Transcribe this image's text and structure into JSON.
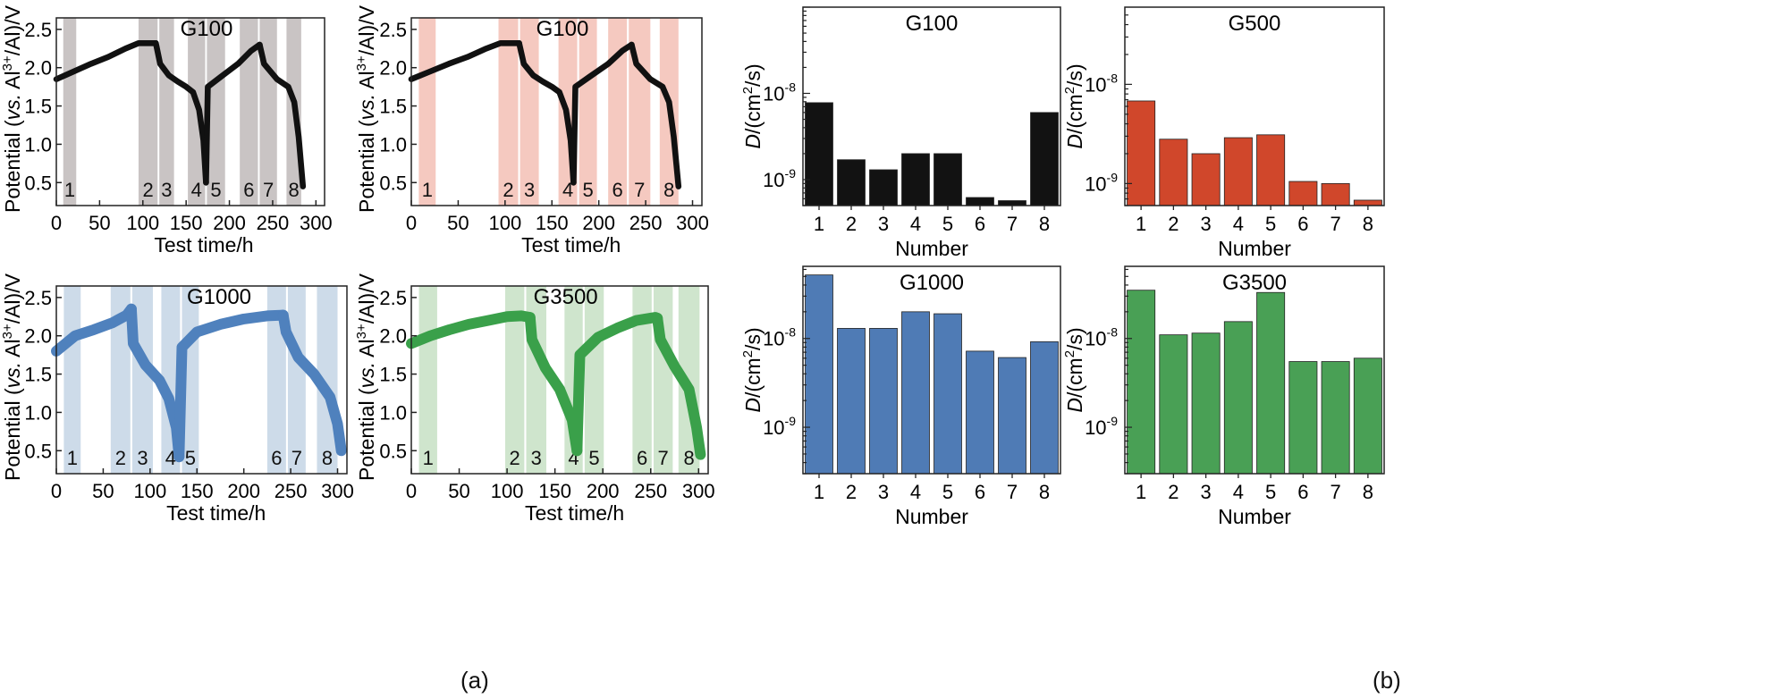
{
  "captions": {
    "a": "(a)",
    "b": "(b)"
  },
  "chart_data": [
    {
      "id": "pot-g100-gray",
      "type": "line",
      "title": "G100",
      "xlabel": "Test time/h",
      "ylabel_parts": [
        "Potential (",
        "vs.",
        " Al",
        "3+",
        "/Al)/V"
      ],
      "xlim": [
        0,
        310
      ],
      "ylim": [
        0.2,
        2.65
      ],
      "xticks": [
        0,
        50,
        100,
        150,
        200,
        250,
        300
      ],
      "yticks": [
        0.5,
        1.0,
        1.5,
        2.0,
        2.5
      ],
      "ytick_labels": [
        "0.5",
        "1.0",
        "1.5",
        "2.0",
        "2.5"
      ],
      "band_color": "#c9c4c4",
      "line_color": "#111111",
      "line_width": 2.2,
      "bands": [
        {
          "x0": 8,
          "x1": 23,
          "label": "1"
        },
        {
          "x0": 95,
          "x1": 117,
          "label": "2"
        },
        {
          "x0": 119,
          "x1": 136,
          "label": "3"
        },
        {
          "x0": 152,
          "x1": 172,
          "label": "4"
        },
        {
          "x0": 174,
          "x1": 195,
          "label": "5"
        },
        {
          "x0": 212,
          "x1": 233,
          "label": "6"
        },
        {
          "x0": 235,
          "x1": 255,
          "label": "7"
        },
        {
          "x0": 266,
          "x1": 283,
          "label": "8"
        }
      ],
      "series": [
        {
          "x": [
            0,
            20,
            40,
            60,
            80,
            95,
            115
          ],
          "y": [
            1.85,
            1.95,
            2.05,
            2.14,
            2.25,
            2.32,
            2.32
          ]
        },
        {
          "x": [
            115,
            120,
            130,
            140,
            150,
            158,
            165,
            170,
            173
          ],
          "y": [
            2.32,
            2.05,
            1.9,
            1.82,
            1.75,
            1.68,
            1.45,
            1.05,
            0.5
          ]
        },
        {
          "x": [
            173,
            175,
            190,
            210,
            225,
            235
          ],
          "y": [
            0.5,
            1.75,
            1.88,
            2.05,
            2.22,
            2.3
          ]
        },
        {
          "x": [
            235,
            240,
            255,
            268,
            275,
            280,
            285
          ],
          "y": [
            2.3,
            2.05,
            1.85,
            1.75,
            1.55,
            1.1,
            0.45
          ]
        }
      ]
    },
    {
      "id": "pot-g100-pink",
      "type": "line",
      "title": "G100",
      "xlabel": "Test time/h",
      "ylabel_parts": [
        "Potential (",
        "vs.",
        " Al",
        "3+",
        "/Al)/V"
      ],
      "xlim": [
        0,
        310
      ],
      "ylim": [
        0.2,
        2.65
      ],
      "xticks": [
        0,
        50,
        100,
        150,
        200,
        250,
        300
      ],
      "yticks": [
        0.5,
        1.0,
        1.5,
        2.0,
        2.5
      ],
      "ytick_labels": [
        "0.5",
        "1.0",
        "1.5",
        "2.0",
        "2.5"
      ],
      "band_color": "#f5c9c0",
      "line_color": "#111111",
      "line_width": 2.2,
      "bands": [
        {
          "x0": 8,
          "x1": 26,
          "label": "1"
        },
        {
          "x0": 93,
          "x1": 114,
          "label": "2"
        },
        {
          "x0": 116,
          "x1": 136,
          "label": "3"
        },
        {
          "x0": 157,
          "x1": 177,
          "label": "4"
        },
        {
          "x0": 179,
          "x1": 198,
          "label": "5"
        },
        {
          "x0": 210,
          "x1": 230,
          "label": "6"
        },
        {
          "x0": 232,
          "x1": 255,
          "label": "7"
        },
        {
          "x0": 265,
          "x1": 285,
          "label": "8"
        }
      ],
      "series": [
        {
          "x": [
            0,
            20,
            40,
            60,
            80,
            95,
            115
          ],
          "y": [
            1.85,
            1.95,
            2.05,
            2.14,
            2.25,
            2.32,
            2.32
          ]
        },
        {
          "x": [
            115,
            120,
            130,
            140,
            150,
            158,
            165,
            170,
            173
          ],
          "y": [
            2.32,
            2.05,
            1.9,
            1.82,
            1.75,
            1.68,
            1.45,
            1.05,
            0.5
          ]
        },
        {
          "x": [
            173,
            175,
            190,
            210,
            225,
            235
          ],
          "y": [
            0.5,
            1.75,
            1.88,
            2.05,
            2.22,
            2.3
          ]
        },
        {
          "x": [
            235,
            240,
            255,
            268,
            275,
            280,
            285
          ],
          "y": [
            2.3,
            2.05,
            1.85,
            1.75,
            1.55,
            1.1,
            0.45
          ]
        }
      ]
    },
    {
      "id": "pot-g1000",
      "type": "line",
      "title": "G1000",
      "xlabel": "Test time/h",
      "ylabel_parts": [
        "Potential (",
        "vs.",
        " Al",
        "3+",
        "/Al)/V"
      ],
      "xlim": [
        0,
        310
      ],
      "ylim": [
        0.2,
        2.65
      ],
      "xticks": [
        0,
        50,
        100,
        150,
        200,
        250,
        300
      ],
      "yticks": [
        0.5,
        1.0,
        1.5,
        2.0,
        2.5
      ],
      "ytick_labels": [
        "0.5",
        "1.0",
        "1.5",
        "2.0",
        "2.5"
      ],
      "band_color": "#cddbe9",
      "line_color": "#4f81bd",
      "line_width": 4,
      "bands": [
        {
          "x0": 8,
          "x1": 26,
          "label": "1"
        },
        {
          "x0": 58,
          "x1": 79,
          "label": "2"
        },
        {
          "x0": 81,
          "x1": 103,
          "label": "3"
        },
        {
          "x0": 112,
          "x1": 132,
          "label": "4"
        },
        {
          "x0": 134,
          "x1": 152,
          "label": "5"
        },
        {
          "x0": 225,
          "x1": 245,
          "label": "6"
        },
        {
          "x0": 247,
          "x1": 266,
          "label": "7"
        },
        {
          "x0": 278,
          "x1": 300,
          "label": "8"
        }
      ],
      "series": [
        {
          "x": [
            0,
            20,
            40,
            60,
            75,
            80
          ],
          "y": [
            1.8,
            2.0,
            2.08,
            2.17,
            2.27,
            2.35
          ]
        },
        {
          "x": [
            80,
            82,
            95,
            110,
            120,
            128,
            131
          ],
          "y": [
            2.35,
            1.9,
            1.62,
            1.42,
            1.18,
            0.8,
            0.42
          ]
        },
        {
          "x": [
            131,
            134,
            150,
            175,
            200,
            225,
            242
          ],
          "y": [
            0.42,
            1.85,
            2.05,
            2.15,
            2.22,
            2.26,
            2.27
          ]
        },
        {
          "x": [
            242,
            245,
            258,
            275,
            292,
            300,
            304
          ],
          "y": [
            2.27,
            2.05,
            1.72,
            1.5,
            1.2,
            0.85,
            0.5
          ]
        }
      ]
    },
    {
      "id": "pot-g3500",
      "type": "line",
      "title": "G3500",
      "xlabel": "Test time/h",
      "ylabel_parts": [
        "Potential (",
        "vs.",
        " Al",
        "3+",
        "/Al)/V"
      ],
      "xlim": [
        0,
        310
      ],
      "ylim": [
        0.2,
        2.65
      ],
      "xticks": [
        0,
        50,
        100,
        150,
        200,
        250,
        300
      ],
      "yticks": [
        0.5,
        1.0,
        1.5,
        2.0,
        2.5
      ],
      "ytick_labels": [
        "0.5",
        "1.0",
        "1.5",
        "2.0",
        "2.5"
      ],
      "band_color": "#cfe5cd",
      "line_color": "#3aa04a",
      "line_width": 4,
      "bands": [
        {
          "x0": 8,
          "x1": 27,
          "label": "1"
        },
        {
          "x0": 98,
          "x1": 118,
          "label": "2"
        },
        {
          "x0": 120,
          "x1": 141,
          "label": "3"
        },
        {
          "x0": 160,
          "x1": 179,
          "label": "4"
        },
        {
          "x0": 181,
          "x1": 201,
          "label": "5"
        },
        {
          "x0": 231,
          "x1": 251,
          "label": "6"
        },
        {
          "x0": 253,
          "x1": 273,
          "label": "7"
        },
        {
          "x0": 279,
          "x1": 301,
          "label": "8"
        }
      ],
      "series": [
        {
          "x": [
            0,
            20,
            40,
            60,
            80,
            100,
            115,
            124
          ],
          "y": [
            1.9,
            2.0,
            2.08,
            2.15,
            2.2,
            2.25,
            2.26,
            2.24
          ]
        },
        {
          "x": [
            124,
            126,
            140,
            155,
            168,
            173
          ],
          "y": [
            2.24,
            1.95,
            1.58,
            1.3,
            0.9,
            0.5
          ]
        },
        {
          "x": [
            173,
            176,
            195,
            215,
            235,
            255,
            257
          ],
          "y": [
            0.5,
            1.75,
            1.98,
            2.1,
            2.2,
            2.24,
            2.23
          ]
        },
        {
          "x": [
            257,
            260,
            275,
            290,
            298,
            302
          ],
          "y": [
            2.23,
            1.95,
            1.6,
            1.3,
            0.8,
            0.45
          ]
        }
      ]
    },
    {
      "id": "diff-g100",
      "type": "bar",
      "title": "G100",
      "xlabel": "Number",
      "ylabel_parts": [
        "D",
        "/(cm",
        "2",
        "/s)"
      ],
      "yscale": "log",
      "ylim": [
        5e-10,
        1e-07
      ],
      "yticks": [
        1e-09,
        1e-08
      ],
      "ytick_bases": [
        "10",
        "10"
      ],
      "ytick_exps": [
        "-9",
        "-8"
      ],
      "categories": [
        "1",
        "2",
        "3",
        "4",
        "5",
        "6",
        "7",
        "8"
      ],
      "values": [
        7.8e-09,
        1.7e-09,
        1.3e-09,
        2e-09,
        2e-09,
        6.2e-10,
        5.7e-10,
        6e-09
      ],
      "color": "#121212"
    },
    {
      "id": "diff-g500",
      "type": "bar",
      "title": "G500",
      "xlabel": "Number",
      "ylabel_parts": [
        "D",
        "/(cm",
        "2",
        "/s)"
      ],
      "yscale": "log",
      "ylim": [
        6e-10,
        6e-08
      ],
      "yticks": [
        1e-09,
        1e-08
      ],
      "ytick_bases": [
        "10",
        "10"
      ],
      "ytick_exps": [
        "-9",
        "-8"
      ],
      "categories": [
        "1",
        "2",
        "3",
        "4",
        "5",
        "6",
        "7",
        "8"
      ],
      "values": [
        6.8e-09,
        2.8e-09,
        2e-09,
        2.9e-09,
        3.1e-09,
        1.05e-09,
        1e-09,
        6.8e-10
      ],
      "color": "#d0472b"
    },
    {
      "id": "diff-g1000",
      "type": "bar",
      "title": "G1000",
      "xlabel": "Number",
      "ylabel_parts": [
        "D",
        "/(cm",
        "2",
        "/s)"
      ],
      "yscale": "log",
      "ylim": [
        3e-10,
        6.5e-08
      ],
      "yticks": [
        1e-09,
        1e-08
      ],
      "ytick_bases": [
        "10",
        "10"
      ],
      "ytick_exps": [
        "-9",
        "-8"
      ],
      "categories": [
        "1",
        "2",
        "3",
        "4",
        "5",
        "6",
        "7",
        "8"
      ],
      "values": [
        5.2e-08,
        1.3e-08,
        1.3e-08,
        2e-08,
        1.9e-08,
        7.2e-09,
        6.1e-09,
        9.2e-09
      ],
      "color": "#4f7bb5"
    },
    {
      "id": "diff-g3500",
      "type": "bar",
      "title": "G3500",
      "xlabel": "Number",
      "ylabel_parts": [
        "D",
        "/(cm",
        "2",
        "/s)"
      ],
      "yscale": "log",
      "ylim": [
        3e-10,
        6.5e-08
      ],
      "yticks": [
        1e-09,
        1e-08
      ],
      "ytick_bases": [
        "10",
        "10"
      ],
      "ytick_exps": [
        "-9",
        "-8"
      ],
      "categories": [
        "1",
        "2",
        "3",
        "4",
        "5",
        "6",
        "7",
        "8"
      ],
      "values": [
        3.5e-08,
        1.1e-08,
        1.15e-08,
        1.55e-08,
        3.3e-08,
        5.5e-09,
        5.5e-09,
        6e-09
      ],
      "color": "#49a055"
    }
  ]
}
